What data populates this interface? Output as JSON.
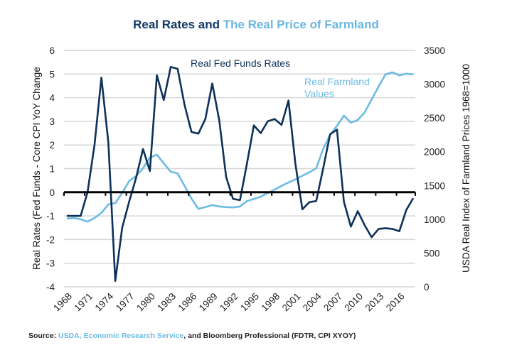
{
  "chart_data": {
    "type": "line",
    "title": {
      "part1": "Real Rates and ",
      "part2": "The Real Price of Farmland"
    },
    "x": [
      1968,
      1969,
      1970,
      1971,
      1972,
      1973,
      1974,
      1975,
      1976,
      1977,
      1978,
      1979,
      1980,
      1981,
      1982,
      1983,
      1984,
      1985,
      1986,
      1987,
      1988,
      1989,
      1990,
      1991,
      1992,
      1993,
      1994,
      1995,
      1996,
      1997,
      1998,
      1999,
      2000,
      2001,
      2002,
      2003,
      2004,
      2005,
      2006,
      2007,
      2008,
      2009,
      2010,
      2011,
      2012,
      2013,
      2014,
      2015,
      2016,
      2017,
      2018
    ],
    "xtick_labels": [
      "1968",
      "1971",
      "1974",
      "1977",
      "1980",
      "1983",
      "1986",
      "1989",
      "1992",
      "1995",
      "1998",
      "2001",
      "2004",
      "2007",
      "2010",
      "2013",
      "2016"
    ],
    "xlim": [
      1967.6,
      2018.3
    ],
    "ylabel_left": "Real Rates (Fed Funds - Core CPI YoY Change",
    "ylabel_right": "USDA Real Index of Farmland Prices 1968=1000",
    "ylim_left": [
      -4,
      6
    ],
    "ylim_right": [
      0,
      3500
    ],
    "yticks_left": [
      "6",
      "5",
      "4",
      "3",
      "2",
      "1",
      "0",
      "-1",
      "-2",
      "-3",
      "-4"
    ],
    "yticks_right": [
      "3500",
      "3000",
      "2500",
      "2000",
      "1500",
      "1000",
      "500",
      "0"
    ],
    "grid": true,
    "series": [
      {
        "name": "Real Fed Funds Rates",
        "axis": "left",
        "color": "#0d3158",
        "values": [
          -1.0,
          -1.0,
          -1.0,
          0.0,
          2.0,
          4.85,
          2.1,
          -3.75,
          -1.5,
          -0.4,
          0.6,
          1.83,
          0.9,
          4.95,
          3.9,
          5.3,
          5.22,
          3.7,
          2.55,
          2.48,
          3.1,
          4.6,
          3.05,
          0.65,
          -0.28,
          -0.33,
          1.2,
          2.83,
          2.5,
          3.0,
          3.1,
          2.85,
          3.88,
          1.2,
          -0.72,
          -0.42,
          -0.37,
          1.0,
          2.45,
          2.65,
          -0.4,
          -1.45,
          -0.8,
          -1.4,
          -1.9,
          -1.55,
          -1.52,
          -1.55,
          -1.65,
          -0.75,
          -0.25
        ]
      },
      {
        "name": "Real Farmland Values",
        "axis": "right",
        "color": "#6cbbe5",
        "values": [
          1010,
          1020,
          1000,
          965,
          1020,
          1095,
          1220,
          1240,
          1390,
          1565,
          1640,
          1755,
          1915,
          1955,
          1830,
          1705,
          1680,
          1495,
          1305,
          1155,
          1180,
          1210,
          1190,
          1180,
          1175,
          1190,
          1270,
          1300,
          1335,
          1390,
          1440,
          1495,
          1545,
          1590,
          1645,
          1695,
          1755,
          2040,
          2250,
          2385,
          2535,
          2430,
          2470,
          2585,
          2775,
          2965,
          3145,
          3175,
          3130,
          3155,
          3145
        ]
      }
    ],
    "annotations": {
      "fed": "Real Fed Funds Rates",
      "farm_line1": "Real Farmland",
      "farm_line2": "Values"
    },
    "source": {
      "prefix": "Source: ",
      "link": "USDA, Economic Research Service",
      "suffix": ", and Bloomberg Professional (FDTR, CPI XYOY)"
    }
  }
}
